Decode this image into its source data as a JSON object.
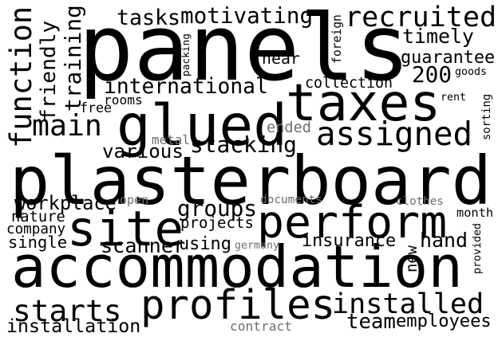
{
  "style": {
    "background": "#ffffff",
    "ink": "#000000",
    "muted": "#6e6e6e"
  },
  "words": [
    {
      "text": "panels"
    },
    {
      "text": "plasterboard"
    },
    {
      "text": "accommodation"
    },
    {
      "text": "taxes"
    },
    {
      "text": "glued"
    },
    {
      "text": "perform"
    },
    {
      "text": "site"
    },
    {
      "text": "profiles"
    },
    {
      "text": "assigned"
    },
    {
      "text": "function"
    },
    {
      "text": "installed"
    },
    {
      "text": "recruited"
    },
    {
      "text": "main"
    },
    {
      "text": "starts"
    },
    {
      "text": "hand"
    },
    {
      "text": "installation"
    },
    {
      "text": "200"
    },
    {
      "text": "motivating"
    },
    {
      "text": "tasks"
    },
    {
      "text": "friendly"
    },
    {
      "text": "training"
    },
    {
      "text": "international"
    },
    {
      "text": "timely"
    },
    {
      "text": "stacking"
    },
    {
      "text": "groups"
    },
    {
      "text": "scanner"
    },
    {
      "text": "employees"
    },
    {
      "text": "team"
    },
    {
      "text": "guarantee"
    },
    {
      "text": "insurance"
    },
    {
      "text": "workplace"
    },
    {
      "text": "various"
    },
    {
      "text": "projects"
    },
    {
      "text": "collection"
    },
    {
      "text": "using"
    },
    {
      "text": "near"
    },
    {
      "text": "single"
    },
    {
      "text": "nature"
    },
    {
      "text": "company"
    },
    {
      "text": "ended"
    },
    {
      "text": "metal"
    },
    {
      "text": "open"
    },
    {
      "text": "rooms"
    },
    {
      "text": "free"
    },
    {
      "text": "goods"
    },
    {
      "text": "rent"
    },
    {
      "text": "sorting"
    },
    {
      "text": "packing"
    },
    {
      "text": "foreign"
    },
    {
      "text": "documents"
    },
    {
      "text": "clothes"
    },
    {
      "text": "month"
    },
    {
      "text": "germany"
    },
    {
      "text": "new"
    },
    {
      "text": "provided"
    },
    {
      "text": "contract"
    }
  ]
}
